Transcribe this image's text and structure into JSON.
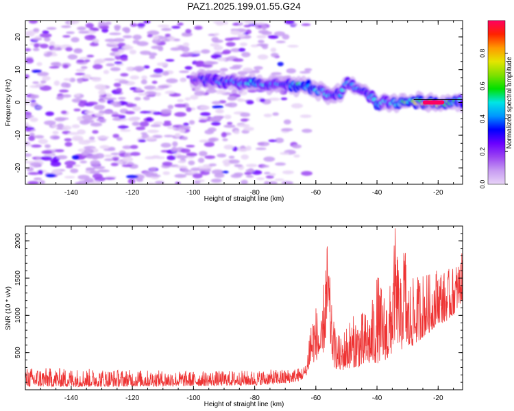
{
  "title": "PAZ1.2025.199.01.55.G24",
  "chart_data": [
    {
      "type": "heatmap",
      "xlabel": "Height of straight line (km)",
      "ylabel": "Frequency (Hz)",
      "xlim": [
        -155,
        -12
      ],
      "ylim": [
        -25,
        25
      ],
      "x_ticks": [
        -140,
        -120,
        -100,
        -80,
        -60,
        -40,
        -20
      ],
      "y_ticks": [
        -20,
        -10,
        0,
        10,
        20
      ],
      "colorbar": {
        "label": "Normalized spectral amplitude",
        "range": [
          0.0,
          1.0
        ],
        "ticks": [
          0.0,
          0.2,
          0.4,
          0.6,
          0.8
        ],
        "colormap": [
          "#e8d4f7",
          "#c79cf2",
          "#9b45f2",
          "#6a00ff",
          "#0000ff",
          "#0096ff",
          "#00e5e5",
          "#00e000",
          "#7fe000",
          "#e5e500",
          "#ff9900",
          "#ff2200",
          "#ff0060"
        ]
      },
      "ridge": {
        "description_points_x": [
          -100,
          -95,
          -90,
          -85,
          -80,
          -75,
          -70,
          -65,
          -60,
          -55,
          -52,
          -50,
          -47,
          -44,
          -40,
          -36,
          -32,
          -28,
          -24,
          -20,
          -16,
          -12
        ],
        "description_points_y": [
          7,
          6.5,
          6.5,
          6,
          6,
          5.5,
          5.5,
          5,
          4,
          2.5,
          3,
          6,
          5,
          3,
          0,
          0,
          0,
          0,
          0,
          0,
          0,
          0
        ],
        "peak_amplitude": [
          0.35,
          0.4,
          0.45,
          0.5,
          0.55,
          0.45,
          0.5,
          0.6,
          0.55,
          0.45,
          0.5,
          0.5,
          0.45,
          0.4,
          0.55,
          0.5,
          0.6,
          0.8,
          1.0,
          1.0,
          0.6,
          0.5
        ]
      },
      "noise_region_x": [
        -155,
        -65
      ],
      "noise_amplitude": 0.15
    },
    {
      "type": "line",
      "xlabel": "Height of straight line (km)",
      "ylabel": "SNR (10 * v/v)",
      "xlim": [
        -155,
        -12
      ],
      "ylim": [
        0,
        2200
      ],
      "x_ticks": [
        -140,
        -120,
        -100,
        -80,
        -60,
        -40,
        -20
      ],
      "y_ticks": [
        500,
        1000,
        1500,
        2000
      ],
      "color": "#ee3333",
      "envelope": {
        "x": [
          -155,
          -130,
          -100,
          -80,
          -70,
          -65,
          -63,
          -62,
          -60,
          -58,
          -57,
          -56,
          -55,
          -54,
          -52,
          -50,
          -48,
          -45,
          -42,
          -40,
          -38,
          -36,
          -35,
          -34,
          -32,
          -31,
          -30,
          -28,
          -25,
          -22,
          -20,
          -18,
          -15,
          -12
        ],
        "low": [
          40,
          40,
          50,
          60,
          80,
          120,
          200,
          300,
          400,
          400,
          600,
          900,
          500,
          300,
          250,
          280,
          300,
          300,
          350,
          350,
          400,
          400,
          500,
          700,
          500,
          800,
          500,
          600,
          700,
          800,
          900,
          900,
          1000,
          1200
        ],
        "high": [
          300,
          280,
          250,
          260,
          280,
          300,
          350,
          1000,
          1150,
          900,
          1900,
          2050,
          1200,
          900,
          700,
          900,
          1000,
          1050,
          1100,
          1600,
          1350,
          1300,
          1800,
          2200,
          1400,
          2200,
          1500,
          1500,
          1600,
          1550,
          1700,
          1600,
          1650,
          1850
        ]
      }
    }
  ]
}
